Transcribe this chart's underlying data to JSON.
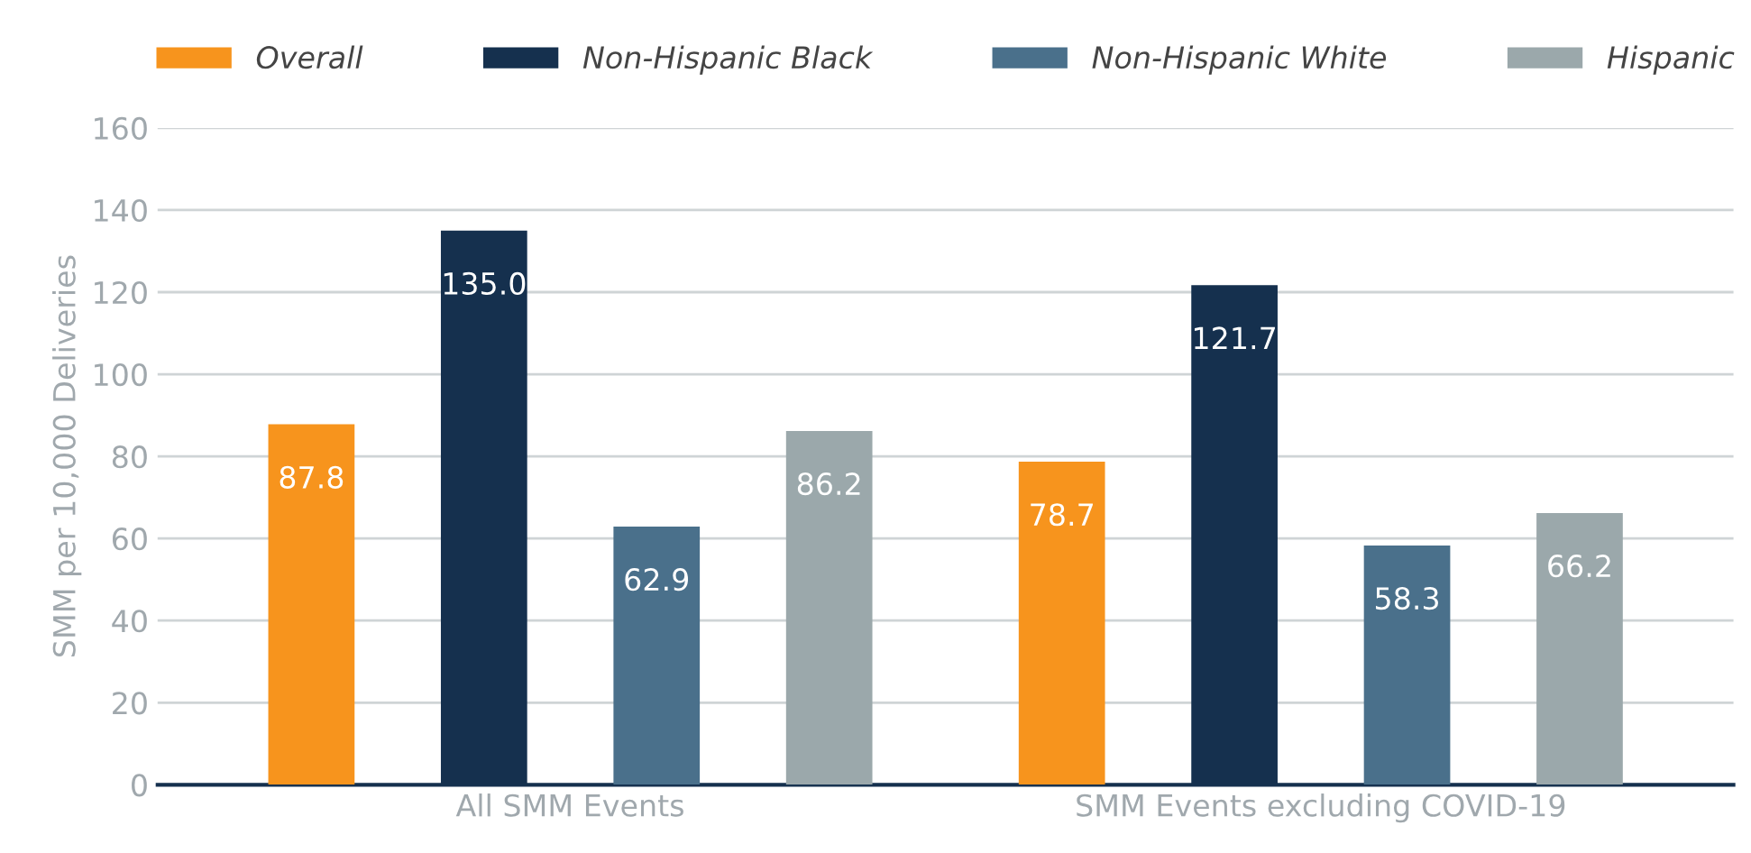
{
  "chart_data": {
    "type": "bar",
    "ylabel": "SMM per 10,000 Deliveries",
    "categories": [
      "All SMM Events",
      "SMM Events excluding COVID-19"
    ],
    "series": [
      {
        "name": "Overall",
        "color": "#f7941d",
        "values": [
          87.8,
          78.7
        ]
      },
      {
        "name": "Non-Hispanic Black",
        "color": "#15304e",
        "values": [
          135.0,
          121.7
        ]
      },
      {
        "name": "Non-Hispanic White",
        "color": "#4a708b",
        "values": [
          62.9,
          58.3
        ]
      },
      {
        "name": "Hispanic",
        "color": "#9ba8ab",
        "values": [
          86.2,
          66.2
        ]
      }
    ],
    "value_labels": [
      [
        "87.8",
        "78.7"
      ],
      [
        "135.0",
        "121.7"
      ],
      [
        "62.9",
        "58.3"
      ],
      [
        "86.2",
        "66.2"
      ]
    ],
    "ylim": [
      0,
      160
    ],
    "yticks": [
      0,
      20,
      40,
      60,
      80,
      100,
      120,
      140,
      160
    ],
    "grid": "y",
    "legend": "top"
  }
}
